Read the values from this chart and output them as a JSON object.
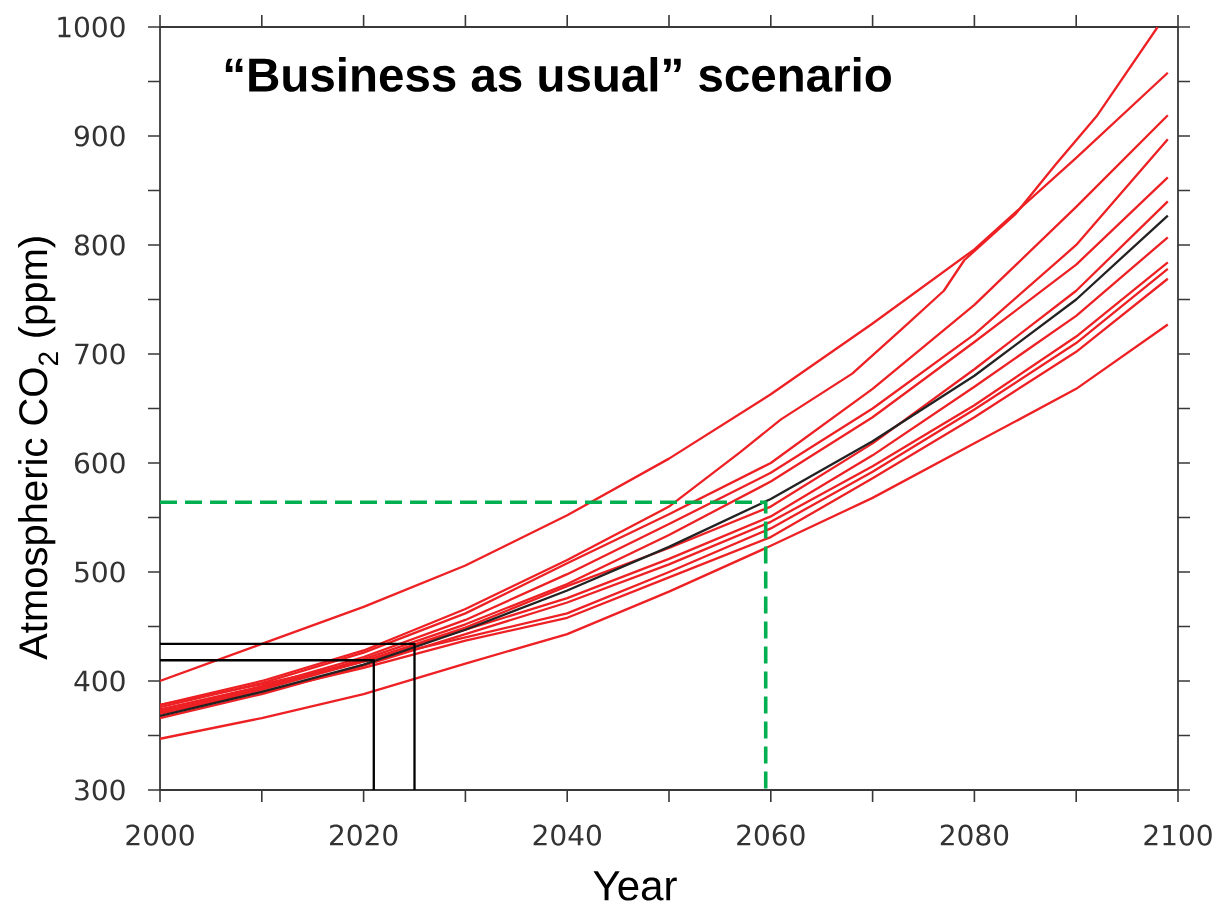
{
  "chart_data": {
    "type": "line",
    "title": "“Business as usual” scenario",
    "xlabel": "Year",
    "ylabel": "Atmospheric CO$_{2}$ (ppm)",
    "x": [
      2000,
      2010,
      2020,
      2030,
      2040,
      2050,
      2060,
      2070,
      2080,
      2090,
      2099
    ],
    "series": [
      {
        "color": "#ed2024",
        "values": [
          400,
          434,
          468,
          506,
          552,
          604,
          663,
          728,
          796,
          880,
          958
        ]
      },
      {
        "color": "#ed2024",
        "x": [
          2000,
          2010,
          2020,
          2030,
          2040,
          2050,
          2057,
          2061,
          2068,
          2073,
          2077,
          2079,
          2084,
          2088,
          2092,
          2095,
          2098
        ],
        "values": [
          378,
          400,
          428,
          466,
          511,
          560,
          610,
          640,
          682,
          724,
          758,
          786,
          828,
          874,
          918,
          959,
          1000
        ]
      },
      {
        "color": "#ed2024",
        "values": [
          376,
          398,
          426,
          462,
          508,
          553,
          600,
          668,
          745,
          835,
          919
        ]
      },
      {
        "color": "#ed2024",
        "values": [
          374,
          395,
          422,
          456,
          498,
          544,
          591,
          650,
          718,
          800,
          897
        ]
      },
      {
        "color": "#ed2024",
        "values": [
          372,
          393,
          420,
          452,
          489,
          534,
          583,
          642,
          711,
          782,
          862
        ]
      },
      {
        "color": "#ed2024",
        "values": [
          370,
          392,
          418,
          449,
          487,
          522,
          560,
          618,
          686,
          758,
          840
        ]
      },
      {
        "color": "#ed2024",
        "values": [
          372,
          394,
          418,
          447,
          476,
          512,
          551,
          607,
          670,
          735,
          807
        ]
      },
      {
        "color": "#ed2024",
        "values": [
          366,
          388,
          414,
          443,
          472,
          507,
          546,
          597,
          653,
          716,
          784
        ]
      },
      {
        "color": "#ed2024",
        "values": [
          378,
          397,
          418,
          440,
          462,
          500,
          540,
          592,
          649,
          710,
          778
        ]
      },
      {
        "color": "#ed2024",
        "values": [
          370,
          390,
          412,
          437,
          458,
          495,
          532,
          586,
          642,
          702,
          769
        ]
      },
      {
        "color": "#ed2024",
        "values": [
          347,
          366,
          388,
          416,
          443,
          482,
          524,
          568,
          618,
          668,
          727
        ]
      },
      {
        "color": "#222222",
        "values": [
          368,
          390,
          415,
          447,
          483,
          523,
          567,
          620,
          680,
          750,
          827
        ]
      },
      {
        "color": "#000000",
        "x": [
          2000,
          2021,
          2021
        ],
        "values": [
          419,
          419,
          300
        ]
      },
      {
        "color": "#000000",
        "x": [
          2000,
          2025,
          2025
        ],
        "values": [
          434,
          434,
          300
        ]
      },
      {
        "color": "#00b050",
        "line_style": "dashed",
        "x": [
          2000,
          2059.5,
          2059.5
        ],
        "values": [
          564,
          564,
          300
        ]
      }
    ],
    "xlim": [
      2000,
      2100
    ],
    "ylim": [
      300,
      1000
    ],
    "xticks": [
      2000,
      {
        "value": 2010,
        "label": null
      },
      2020,
      {
        "value": 2030,
        "label": null
      },
      2040,
      {
        "value": 2050,
        "label": null
      },
      2060,
      {
        "value": 2070,
        "label": null
      },
      2080,
      {
        "value": 2090,
        "label": null
      },
      2100
    ],
    "yticks": [
      300,
      {
        "value": 350,
        "label": null
      },
      400,
      {
        "value": 450,
        "label": null
      },
      500,
      {
        "value": 550,
        "label": null
      },
      600,
      {
        "value": 650,
        "label": null
      },
      700,
      {
        "value": 750,
        "label": null
      },
      800,
      {
        "value": 850,
        "label": null
      },
      900,
      {
        "value": 950,
        "label": null
      },
      1000
    ],
    "grid": false,
    "marker": "none",
    "line_style": "solid"
  }
}
